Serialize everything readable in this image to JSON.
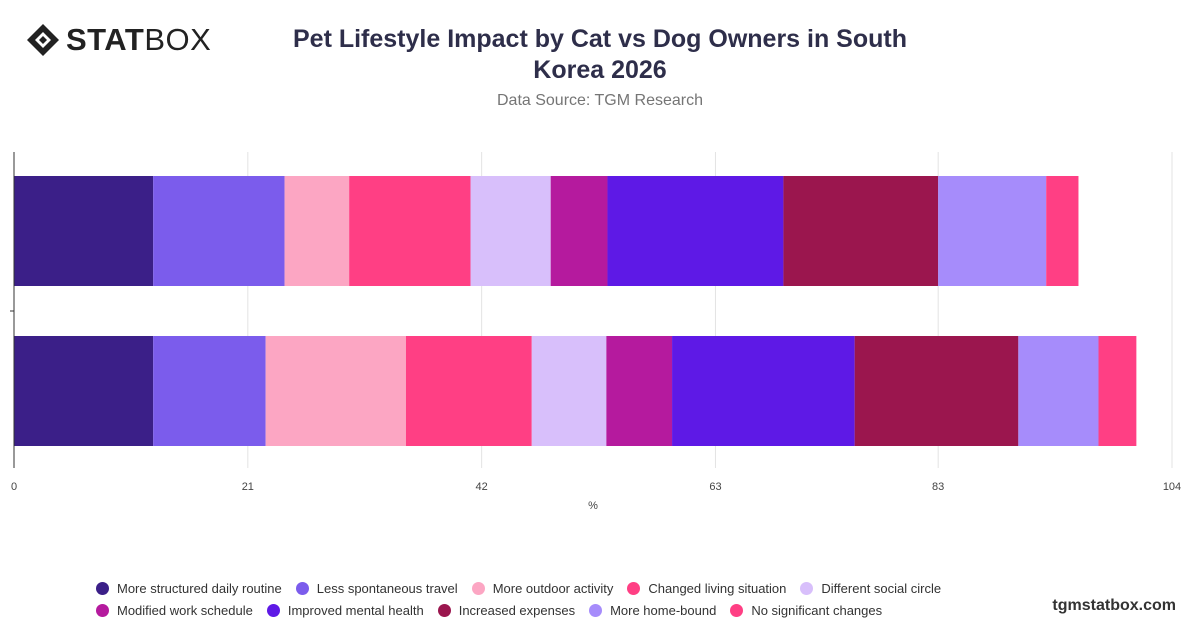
{
  "brand": {
    "logo_bold": "STAT",
    "logo_light": "BOX",
    "watermark": "tgmstatbox.com"
  },
  "header": {
    "title": "Pet Lifestyle Impact by Cat vs Dog Owners in South Korea 2026",
    "subtitle": "Data Source: TGM Research"
  },
  "chart_data": {
    "type": "bar",
    "orientation": "horizontal",
    "stacked": true,
    "title": "Pet Lifestyle Impact by Cat vs Dog Owners in South Korea 2026",
    "subtitle": "Data Source: TGM Research",
    "xlabel": "%",
    "ylabel": "",
    "xlim": [
      0,
      104
    ],
    "x_ticks": [
      0,
      21,
      42,
      63,
      83,
      104
    ],
    "grid": "vertical",
    "legend_position": "bottom",
    "categories": [
      "",
      ""
    ],
    "series": [
      {
        "name": "More structured daily routine",
        "color": "#3b1f88",
        "values": [
          12.5,
          12.5
        ]
      },
      {
        "name": "Less spontaneous travel",
        "color": "#7b5cec",
        "values": [
          11.8,
          10.1
        ]
      },
      {
        "name": "More outdoor activity",
        "color": "#fca6c3",
        "values": [
          5.8,
          12.6
        ]
      },
      {
        "name": "Changed living situation",
        "color": "#ff3f84",
        "values": [
          10.9,
          11.3
        ]
      },
      {
        "name": "Different social circle",
        "color": "#d8bffb",
        "values": [
          7.2,
          6.7
        ]
      },
      {
        "name": "Modified work schedule",
        "color": "#b51a9e",
        "values": [
          5.1,
          5.9
        ]
      },
      {
        "name": "Improved mental health",
        "color": "#5e19e6",
        "values": [
          15.8,
          16.4
        ]
      },
      {
        "name": "Increased expenses",
        "color": "#9b164e",
        "values": [
          13.9,
          14.7
        ]
      },
      {
        "name": "More home-bound",
        "color": "#a68cfb",
        "values": [
          9.7,
          7.2
        ]
      },
      {
        "name": "No significant changes",
        "color": "#ff3f84",
        "values": [
          2.9,
          3.4
        ]
      }
    ]
  }
}
